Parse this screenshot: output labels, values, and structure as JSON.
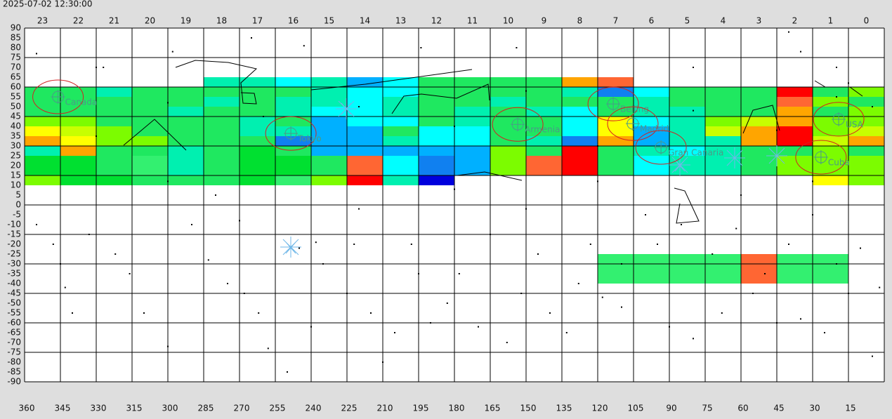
{
  "timestamp": "2025-07-02 12:30:00",
  "top_labels": [
    "23",
    "22",
    "21",
    "20",
    "19",
    "18",
    "17",
    "16",
    "15",
    "14",
    "13",
    "12",
    "11",
    "10",
    "9",
    "8",
    "7",
    "6",
    "5",
    "4",
    "3",
    "2",
    "1",
    "0"
  ],
  "left_labels": [
    90,
    85,
    80,
    75,
    70,
    65,
    60,
    55,
    50,
    45,
    40,
    35,
    30,
    25,
    20,
    15,
    10,
    5,
    0,
    -5,
    -10,
    -15,
    -20,
    -25,
    -30,
    -35,
    -40,
    -45,
    -50,
    -55,
    -60,
    -65,
    -70,
    -75,
    -80,
    -85,
    -90
  ],
  "bottom_labels": [
    360,
    345,
    330,
    315,
    300,
    285,
    270,
    255,
    240,
    225,
    210,
    195,
    180,
    165,
    150,
    135,
    120,
    105,
    90,
    75,
    60,
    45,
    30,
    15
  ],
  "heatmap": [
    {
      "dec": 65,
      "cells": [
        null,
        null,
        null,
        null,
        null,
        "#00f0b0",
        "#00f0b0",
        "#00ffff",
        "#00f0b0",
        "#00b0ff",
        "#00ffff",
        "#1fe860",
        "#1fe860",
        "#1fe860",
        "#1fe860",
        "#ffa500",
        "#ff6633",
        null,
        null,
        null,
        null,
        null,
        null,
        null
      ]
    },
    {
      "dec": 60,
      "cells": [
        "#1fe860",
        "#1fe860",
        "#00f0b0",
        "#1fe860",
        "#1fe860",
        "#1fe860",
        "#1fe860",
        "#1fe860",
        "#00f0b0",
        "#00ffff",
        "#00ffff",
        "#1fe860",
        "#1fe860",
        "#1fe860",
        "#1fe860",
        "#00f0b0",
        "#1080f0",
        "#00ffff",
        "#1fe860",
        "#1fe860",
        "#1fe860",
        "#ff0000",
        "#1fe860",
        "#7cfc00"
      ]
    },
    {
      "dec": 55,
      "cells": [
        "#1fe860",
        "#1fe860",
        "#1fe860",
        "#1fe860",
        "#1fe860",
        "#00f0b0",
        "#1fe860",
        "#00f0b0",
        "#00f0b0",
        "#00ffff",
        "#00f0b0",
        "#1fe860",
        "#1fe860",
        "#00f0b0",
        "#1fe860",
        "#1fe860",
        "#1fe860",
        "#00f0b0",
        "#1fe860",
        "#1fe860",
        "#1fe860",
        "#ff6633",
        "#7cfc00",
        "#1fe860"
      ]
    },
    {
      "dec": 50,
      "cells": [
        "#1fe860",
        "#1fe860",
        "#1fe860",
        "#1fe860",
        "#00f0b0",
        "#1fe860",
        "#1fe860",
        "#00f0b0",
        "#00ffff",
        "#00ffff",
        "#00f0b0",
        "#1fe860",
        "#00f0b0",
        "#1fe860",
        "#00f0b0",
        "#00ffff",
        "#1fe860",
        "#00f0b0",
        "#00f0b0",
        "#1fe860",
        "#1fe860",
        "#ffa500",
        "#1fe860",
        "#7cfc00"
      ]
    },
    {
      "dec": 45,
      "cells": [
        "#7cfc00",
        "#7cfc00",
        "#1fe860",
        "#1fe860",
        "#1fe860",
        "#1fe860",
        "#00f0b0",
        "#1fe860",
        "#00b0ff",
        "#00ffff",
        "#00ffff",
        "#1fe860",
        "#00f0b0",
        "#1fe860",
        "#1fe860",
        "#00ffff",
        "#ffff00",
        "#00ffff",
        "#00f0b0",
        "#7cfc00",
        "#c8ff00",
        "#ffa500",
        "#7cfc00",
        "#7cfc00"
      ]
    },
    {
      "dec": 40,
      "cells": [
        "#ffff00",
        "#c8ff00",
        "#7cfc00",
        "#1fe860",
        "#1fe860",
        "#1fe860",
        "#00f0b0",
        "#00f0b0",
        "#00b0ff",
        "#00b0ff",
        "#1fe860",
        "#00ffff",
        "#00ffff",
        "#1fe860",
        "#1fe860",
        "#00ffff",
        "#ffff00",
        "#00b0ff",
        "#00f0b0",
        "#c8ff00",
        "#ffa500",
        "#ff0000",
        "#7cfc00",
        "#c8ff00"
      ]
    },
    {
      "dec": 35,
      "cells": [
        "#ffa500",
        "#ffff00",
        "#7cfc00",
        "#7cfc00",
        "#1fe860",
        "#1fe860",
        "#1fe860",
        "#1080f0",
        "#00b0ff",
        "#00b0ff",
        "#00f0b0",
        "#00ffff",
        "#00ffff",
        "#1fe860",
        "#00f0b0",
        "#1080f0",
        "#ffa500",
        "#00b0ff",
        "#00f0b0",
        "#00f0b0",
        "#ffa500",
        "#ff0000",
        "#c8ff00",
        "#ffa500"
      ]
    },
    {
      "dec": 30,
      "cells": [
        "#00f0b0",
        "#ffa500",
        "#1fe860",
        "#1fe860",
        "#00f0b0",
        "#1fe860",
        "#00e030",
        "#1fe860",
        "#00b0ff",
        "#00b0ff",
        "#00b0ff",
        "#00b0ff",
        "#00b0ff",
        "#7cfc00",
        "#1fe860",
        "#ff0000",
        "#1fe860",
        "#00f0b0",
        "#00ffff",
        "#00f0b0",
        "#1fe860",
        "#1fe860",
        "#7cfc00",
        "#1fe860"
      ]
    },
    {
      "dec": 25,
      "cells": [
        "#00e030",
        "#00e030",
        "#1fe860",
        "#33f070",
        "#00f0b0",
        "#1fe860",
        "#00e030",
        "#00e030",
        "#1fe860",
        "#ff6633",
        "#00ffff",
        "#1080f0",
        "#00b0ff",
        "#7cfc00",
        "#ff6633",
        "#ff0000",
        "#1fe860",
        "#00ffff",
        "#00f0b0",
        "#00f0b0",
        "#1fe860",
        "#7cfc00",
        "#7cfc00",
        "#7cfc00"
      ]
    },
    {
      "dec": 20,
      "cells": [
        "#00e030",
        "#00e030",
        "#1fe860",
        "#33f070",
        "#00f0b0",
        "#1fe860",
        "#00e030",
        "#00e030",
        "#1fe860",
        "#ff6633",
        "#00ffff",
        "#1080f0",
        "#00b0ff",
        "#7cfc00",
        "#ff6633",
        "#ff0000",
        "#1fe860",
        "#00ffff",
        "#00f0b0",
        "#00f0b0",
        "#1fe860",
        "#7cfc00",
        "#7cfc00",
        "#7cfc00"
      ]
    },
    {
      "dec": 15,
      "cells": [
        "#7cfc00",
        "#00e030",
        "#00e030",
        "#1fe860",
        "#1fe860",
        "#1fe860",
        "#00e030",
        "#33f070",
        "#7cfc00",
        "#ff0000",
        "#00f0b0",
        "#0000dd",
        null,
        null,
        null,
        null,
        null,
        null,
        null,
        null,
        null,
        null,
        "#ffff00",
        "#7cfc00"
      ]
    },
    {
      "dec": -25,
      "cells": [
        null,
        null,
        null,
        null,
        null,
        null,
        null,
        null,
        null,
        null,
        null,
        null,
        null,
        null,
        null,
        null,
        "#33f070",
        "#33f070",
        "#33f070",
        "#33f070",
        "#ff6633",
        "#33f070",
        "#33f070",
        null
      ]
    },
    {
      "dec": -30,
      "cells": [
        null,
        null,
        null,
        null,
        null,
        null,
        null,
        null,
        null,
        null,
        null,
        null,
        null,
        null,
        null,
        null,
        "#33f070",
        "#33f070",
        "#33f070",
        "#33f070",
        "#ff6633",
        "#33f070",
        "#33f070",
        null
      ]
    },
    {
      "dec": -35,
      "cells": [
        null,
        null,
        null,
        null,
        null,
        null,
        null,
        null,
        null,
        null,
        null,
        null,
        null,
        null,
        null,
        null,
        "#33f070",
        "#33f070",
        "#33f070",
        "#33f070",
        "#ff6633",
        "#33f070",
        "#33f070",
        null
      ]
    }
  ],
  "places": [
    {
      "label": "Canada",
      "ra": 346,
      "dec": 55
    },
    {
      "label": "Tokyo",
      "ra": 248.5,
      "dec": 36.4
    },
    {
      "label": "Armenia",
      "ra": 153.5,
      "dec": 41
    },
    {
      "label": "Beijing",
      "ra": 113.5,
      "dec": 51.4
    },
    {
      "label": "Madrid",
      "ra": 105.3,
      "dec": 41.4
    },
    {
      "label": "Gran Canaria",
      "ra": 93.5,
      "dec": 29.3
    },
    {
      "label": "USA",
      "ra": 19.1,
      "dec": 43.6
    },
    {
      "label": "Cuba",
      "ra": 26.5,
      "dec": 24.3
    }
  ],
  "stars": [
    [
      355,
      77
    ],
    [
      330,
      70
    ],
    [
      327,
      70
    ],
    [
      298,
      78
    ],
    [
      265,
      85
    ],
    [
      243,
      81
    ],
    [
      194,
      80
    ],
    [
      154,
      80
    ],
    [
      40,
      88
    ],
    [
      35,
      78
    ],
    [
      20,
      70
    ],
    [
      80,
      70
    ],
    [
      15,
      62
    ],
    [
      355,
      -10
    ],
    [
      348,
      -20
    ],
    [
      343,
      -42
    ],
    [
      340,
      -55
    ],
    [
      333,
      -15
    ],
    [
      322,
      -25
    ],
    [
      316,
      -35
    ],
    [
      310,
      -55
    ],
    [
      300,
      -72
    ],
    [
      290,
      -10
    ],
    [
      283,
      -28
    ],
    [
      275,
      -40
    ],
    [
      268,
      -45
    ],
    [
      262,
      -55
    ],
    [
      258,
      -73
    ],
    [
      250,
      -85
    ],
    [
      240,
      -62
    ],
    [
      235,
      -30
    ],
    [
      225,
      -45
    ],
    [
      222,
      -20
    ],
    [
      215,
      -55
    ],
    [
      210,
      -80
    ],
    [
      205,
      -65
    ],
    [
      198,
      -20
    ],
    [
      190,
      -60
    ],
    [
      183,
      -50
    ],
    [
      178,
      -35
    ],
    [
      170,
      -62
    ],
    [
      165,
      -15
    ],
    [
      158,
      -70
    ],
    [
      152,
      -45
    ],
    [
      145,
      -25
    ],
    [
      140,
      -55
    ],
    [
      133,
      -65
    ],
    [
      128,
      -40
    ],
    [
      123,
      -20
    ],
    [
      118,
      -47
    ],
    [
      110,
      -52
    ],
    [
      100,
      -5
    ],
    [
      95,
      -20
    ],
    [
      90,
      -62
    ],
    [
      85,
      -10
    ],
    [
      80,
      -68
    ],
    [
      72,
      -25
    ],
    [
      68,
      -55
    ],
    [
      62,
      -12
    ],
    [
      55,
      -45
    ],
    [
      50,
      -35
    ],
    [
      45,
      -60
    ],
    [
      40,
      -20
    ],
    [
      35,
      -58
    ],
    [
      30,
      -5
    ],
    [
      25,
      -65
    ],
    [
      20,
      -30
    ],
    [
      15,
      -45
    ],
    [
      10,
      -22
    ],
    [
      5,
      -77
    ],
    [
      2,
      -42
    ],
    [
      300,
      12
    ],
    [
      280,
      5
    ],
    [
      220,
      -2
    ],
    [
      180,
      8
    ],
    [
      150,
      -2
    ],
    [
      120,
      12
    ],
    [
      60,
      5
    ],
    [
      30,
      12
    ],
    [
      345,
      -30
    ],
    [
      270,
      -8
    ],
    [
      195,
      -35
    ],
    [
      110,
      -30
    ],
    [
      245,
      -22
    ],
    [
      238,
      -19
    ],
    [
      330,
      35
    ],
    [
      300,
      52
    ],
    [
      260,
      45
    ],
    [
      220,
      50
    ],
    [
      180,
      40
    ],
    [
      150,
      58
    ],
    [
      120,
      30
    ],
    [
      80,
      48
    ],
    [
      45,
      38
    ],
    [
      20,
      55
    ],
    [
      5,
      50
    ]
  ]
}
